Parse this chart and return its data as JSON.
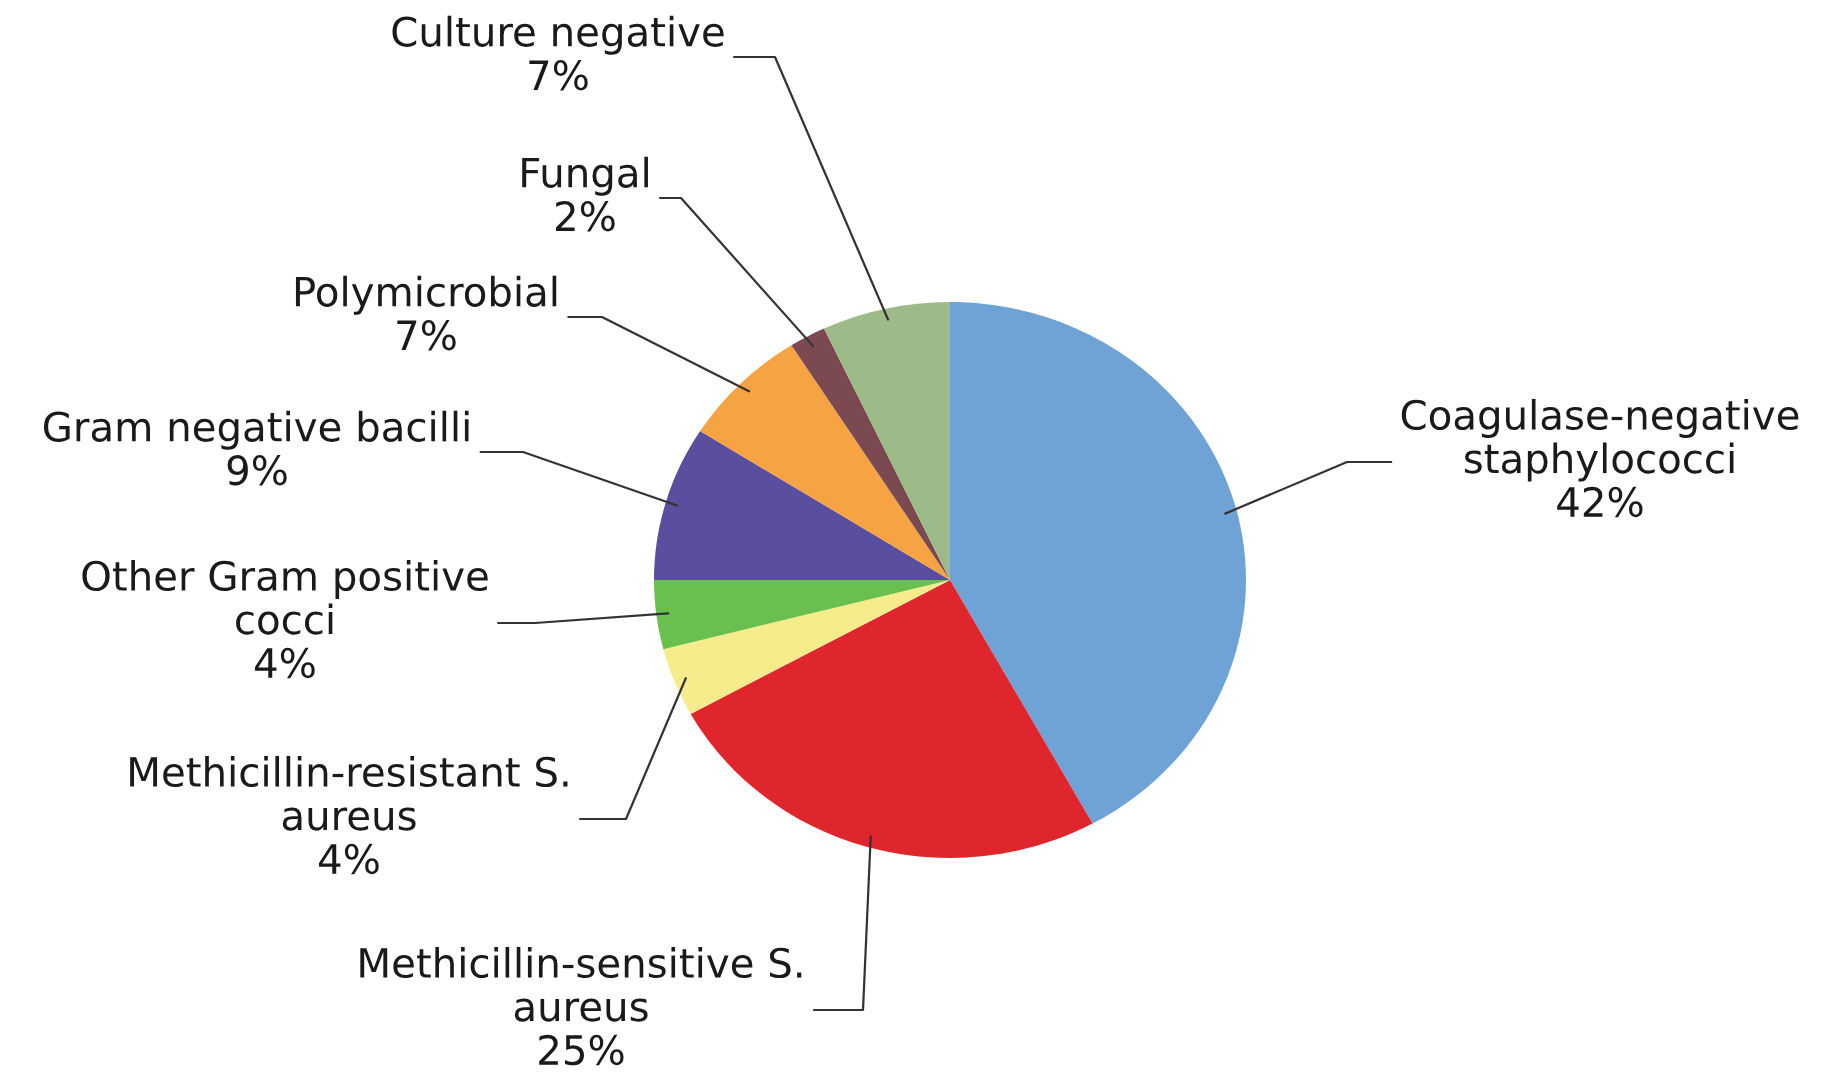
{
  "chart_data": {
    "type": "pie",
    "categories": [
      "Coagulase-negative\nstaphylococci",
      "Methicillin-sensitive S.\naureus",
      "Methicillin-resistant S.\naureus",
      "Other Gram positive\ncocci",
      "Gram negative bacilli",
      "Polymicrobial",
      "Fungal",
      "Culture negative"
    ],
    "values": [
      42,
      25,
      4,
      4,
      9,
      7,
      2,
      7
    ],
    "value_labels": [
      "42%",
      "25%",
      "4%",
      "4%",
      "9%",
      "7%",
      "2%",
      "7%"
    ],
    "colors": [
      "#6fa3d6",
      "#e0262d",
      "#f6ec8c",
      "#6ac04e",
      "#5a4e9f",
      "#f6a344",
      "#7b4a51",
      "#9dba89"
    ]
  }
}
